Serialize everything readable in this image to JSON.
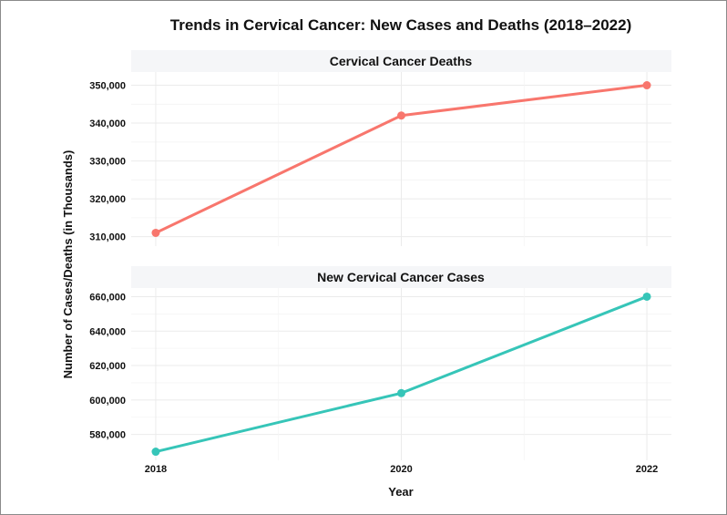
{
  "chart_data": {
    "type": "line",
    "title": "Trends in Cervical Cancer: New Cases and Deaths (2018–2022)",
    "xlabel": "Year",
    "ylabel": "Number of Cases/Deaths (in Thousands)",
    "x_tick_labels": [
      "2018",
      "2020",
      "2022"
    ],
    "grid": true,
    "legend": "none",
    "panels": [
      {
        "strip_label": "Cervical Cancer Deaths",
        "color": "#F8766D",
        "x": [
          2018,
          2020,
          2022
        ],
        "values": [
          311000,
          342000,
          350000
        ],
        "ylim": [
          307500,
          353500
        ],
        "y_ticks": [
          310000,
          320000,
          330000,
          340000,
          350000
        ],
        "y_tick_labels": [
          "310,000",
          "320,000",
          "330,000",
          "340,000",
          "350,000"
        ]
      },
      {
        "strip_label": "New Cervical Cancer Cases",
        "color": "#36C5B8",
        "x": [
          2018,
          2020,
          2022
        ],
        "values": [
          570000,
          604000,
          660000
        ],
        "ylim": [
          565000,
          665000
        ],
        "y_ticks": [
          580000,
          600000,
          620000,
          640000,
          660000
        ],
        "y_tick_labels": [
          "580,000",
          "600,000",
          "620,000",
          "640,000",
          "660,000"
        ]
      }
    ]
  }
}
